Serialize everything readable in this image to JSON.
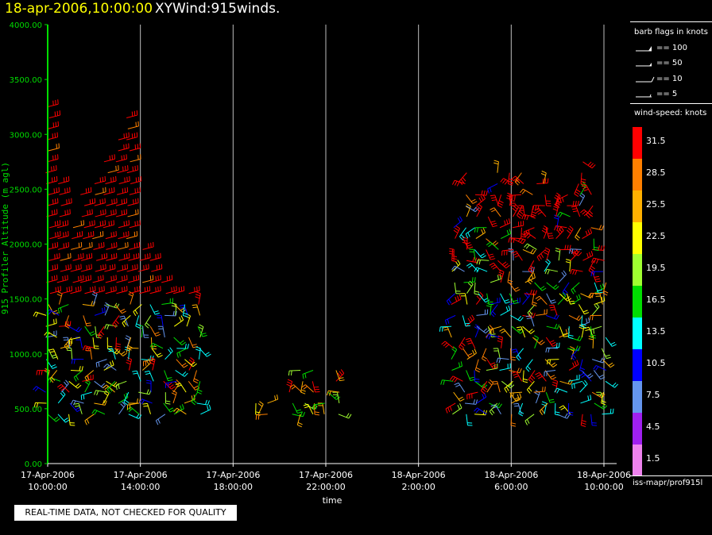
{
  "header": {
    "date": "18-apr-2006,10:00:00",
    "name": "XYWind:915winds."
  },
  "notice": "REAL-TIME DATA, NOT CHECKED FOR QUALITY",
  "legend": {
    "barb_title": "barb flags in knots",
    "barbs": [
      {
        "label": "== 100"
      },
      {
        "label": "== 50"
      },
      {
        "label": "== 10"
      },
      {
        "label": "== 5"
      }
    ],
    "speed_title": "wind-speed: knots",
    "scale": [
      {
        "label": "31.5",
        "color": "#ff0000"
      },
      {
        "label": "28.5",
        "color": "#ff8000"
      },
      {
        "label": "25.5",
        "color": "#ffb000"
      },
      {
        "label": "22.5",
        "color": "#ffff00"
      },
      {
        "label": "19.5",
        "color": "#a0ff30"
      },
      {
        "label": "16.5",
        "color": "#00dd00"
      },
      {
        "label": "13.5",
        "color": "#00ffff"
      },
      {
        "label": "10.5",
        "color": "#0000ff"
      },
      {
        "label": "7.5",
        "color": "#6495ed"
      },
      {
        "label": "4.5",
        "color": "#a020f0"
      },
      {
        "label": "1.5",
        "color": "#ee82ee"
      }
    ],
    "source": "iss-mapr/prof915l"
  },
  "chart_data": {
    "type": "scatter",
    "ylabel": "915 Profiler Altitude (m agl)",
    "xlabel": "time",
    "ylim": [
      0,
      4000
    ],
    "yticks": [
      "0.00",
      "500.00",
      "1000.00",
      "1500.00",
      "2000.00",
      "2500.00",
      "3000.00",
      "3500.00",
      "4000.00"
    ],
    "xlim_hours": [
      0,
      24
    ],
    "xticks": [
      {
        "hour": 0,
        "line1": "17-Apr-2006",
        "line2": "10:00:00"
      },
      {
        "hour": 4,
        "line1": "17-Apr-2006",
        "line2": "14:00:00"
      },
      {
        "hour": 8,
        "line1": "17-Apr-2006",
        "line2": "18:00:00"
      },
      {
        "hour": 12,
        "line1": "17-Apr-2006",
        "line2": "22:00:00"
      },
      {
        "hour": 16,
        "line1": "18-Apr-2006",
        "line2": "2:00:00"
      },
      {
        "hour": 20,
        "line1": "18-Apr-2006",
        "line2": "6:00:00"
      },
      {
        "hour": 24,
        "line1": "18-Apr-2006",
        "line2": "10:00:00"
      }
    ],
    "grid": true,
    "axis_color": "#00dd00",
    "series": [
      {
        "hours": [
          0.0,
          0.5,
          1.0,
          1.5,
          2.0,
          2.5,
          3.0,
          3.5,
          4.0,
          4.5,
          5.0,
          5.5,
          6.0,
          6.5
        ],
        "top_m": [
          3300,
          2600,
          2200,
          2500,
          2600,
          2800,
          3000,
          3200,
          2000,
          1900,
          1700,
          1600,
          1550,
          1500
        ],
        "profile": "upper_red_lower_mixed"
      },
      {
        "hours": [
          9.0,
          9.5,
          10.5,
          11.0,
          11.5,
          12.0,
          12.5
        ],
        "top_m": [
          550,
          600,
          700,
          850,
          850,
          700,
          850
        ],
        "profile": "low_mixed"
      },
      {
        "hours": [
          17.5,
          18.0,
          18.5,
          19.0,
          19.5,
          20.0,
          20.5,
          21.0,
          21.5,
          22.0,
          22.5,
          23.0,
          23.5,
          24.0
        ],
        "top_m": [
          2200,
          2700,
          2500,
          2300,
          2700,
          2650,
          2650,
          2600,
          2600,
          2500,
          2500,
          2800,
          2500,
          1900
        ],
        "profile": "mid_red_mixed"
      }
    ]
  }
}
